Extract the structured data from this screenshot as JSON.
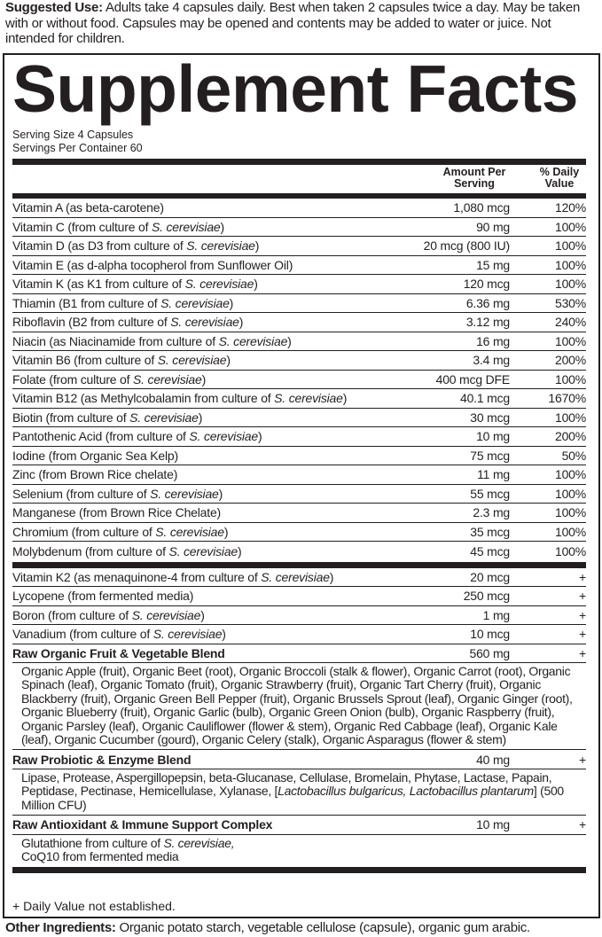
{
  "suggested_use": {
    "label": "Suggested Use:",
    "text": " Adults take 4 capsules daily. Best when taken 2 capsules twice a day. May be taken with or without food. Capsules may be opened and contents may be added to water or juice. Not intended for children."
  },
  "title": "Supplement Facts",
  "serving_size": "Serving Size 4 Capsules",
  "servings_per_container": "Servings Per Container 60",
  "header": {
    "amount": "Amount Per Serving",
    "dv": "% Daily Value"
  },
  "nutrients": [
    {
      "name": [
        "Vitamin A (as beta-carotene)"
      ],
      "amount": "1,080 mcg",
      "dv": "120%"
    },
    {
      "name": [
        "Vitamin C (from culture of ",
        "S. cerevisiae",
        ")"
      ],
      "amount": "90 mg",
      "dv": "100%"
    },
    {
      "name": [
        "Vitamin D (as D3 from culture of ",
        "S. cerevisiae",
        ")"
      ],
      "amount": "20 mcg (800 IU)",
      "dv": "100%"
    },
    {
      "name": [
        "Vitamin E (as d-alpha tocopherol from Sunflower Oil)"
      ],
      "amount": "15 mg",
      "dv": "100%"
    },
    {
      "name": [
        "Vitamin K (as K1 from culture of ",
        "S. cerevisiae",
        ")"
      ],
      "amount": "120 mcg",
      "dv": "100%"
    },
    {
      "name": [
        "Thiamin (B1 from culture of ",
        "S. cerevisiae",
        ")"
      ],
      "amount": "6.36 mg",
      "dv": "530%"
    },
    {
      "name": [
        "Riboflavin (B2 from culture of ",
        "S. cerevisiae",
        ")"
      ],
      "amount": "3.12 mg",
      "dv": "240%"
    },
    {
      "name": [
        "Niacin (as Niacinamide from culture of ",
        "S. cerevisiae",
        ")"
      ],
      "amount": "16 mg",
      "dv": "100%"
    },
    {
      "name": [
        "Vitamin B6 (from culture of ",
        "S. cerevisiae",
        ")"
      ],
      "amount": "3.4 mg",
      "dv": "200%"
    },
    {
      "name": [
        "Folate (from culture of ",
        "S. cerevisiae",
        ")"
      ],
      "amount": "400 mcg DFE",
      "dv": "100%"
    },
    {
      "name": [
        "Vitamin B12 (as Methylcobalamin from culture of ",
        "S. cerevisiae",
        ")"
      ],
      "amount": "40.1 mcg",
      "dv": "1670%"
    },
    {
      "name": [
        "Biotin (from culture of ",
        "S. cerevisiae",
        ")"
      ],
      "amount": "30 mcg",
      "dv": "100%"
    },
    {
      "name": [
        "Pantothenic Acid (from culture of ",
        "S. cerevisiae",
        ")"
      ],
      "amount": "10 mg",
      "dv": "200%"
    },
    {
      "name": [
        "Iodine (from Organic Sea Kelp)"
      ],
      "amount": "75 mcg",
      "dv": "50%"
    },
    {
      "name": [
        "Zinc (from Brown Rice chelate)"
      ],
      "amount": "11 mg",
      "dv": "100%"
    },
    {
      "name": [
        "Selenium (from culture of ",
        "S. cerevisiae",
        ")"
      ],
      "amount": "55 mcg",
      "dv": "100%"
    },
    {
      "name": [
        "Manganese (from Brown Rice Chelate)"
      ],
      "amount": "2.3 mg",
      "dv": "100%"
    },
    {
      "name": [
        "Chromium (from culture of ",
        "S. cerevisiae",
        ")"
      ],
      "amount": "35 mcg",
      "dv": "100%"
    },
    {
      "name": [
        "Molybdenum (from culture of ",
        "S. cerevisiae",
        ")"
      ],
      "amount": "45 mcg",
      "dv": "100%"
    }
  ],
  "other_nutrients": [
    {
      "name": [
        "Vitamin K2 (as menaquinone-4 from culture of ",
        "S. cerevisiae",
        ")"
      ],
      "amount": "20 mcg",
      "dv": "+"
    },
    {
      "name": [
        "Lycopene (from fermented media)"
      ],
      "amount": "250 mcg",
      "dv": "+"
    },
    {
      "name": [
        "Boron (from culture of ",
        "S. cerevisiae",
        ")"
      ],
      "amount": "1 mg",
      "dv": "+"
    },
    {
      "name": [
        "Vanadium (from culture of ",
        "S. cerevisiae",
        ")"
      ],
      "amount": "10 mcg",
      "dv": "+"
    }
  ],
  "blends": [
    {
      "name": "Raw Organic Fruit & Vegetable Blend",
      "amount": "560 mg",
      "dv": "+",
      "desc": [
        "Organic Apple (fruit), Organic Beet (root), Organic Broccoli (stalk & flower), Organic Carrot (root), Organic Spinach (leaf), Organic Tomato (fruit), Organic Strawberry (fruit), Organic Tart Cherry (fruit), Organic Blackberry (fruit), Organic Green Bell Pepper (fruit), Organic Brussels Sprout (leaf), Organic Ginger (root), Organic Blueberry (fruit), Organic Garlic (bulb), Organic Green Onion (bulb), Organic Raspberry (fruit), Organic Parsley (leaf), Organic Cauliflower (flower & stem), Organic Red Cabbage (leaf), Organic Kale (leaf), Organic Cucumber (gourd), Organic Celery (stalk), Organic Asparagus (flower & stem)"
      ]
    },
    {
      "name": "Raw Probiotic & Enzyme Blend",
      "amount": "40 mg",
      "dv": "+",
      "desc": [
        "Lipase, Protease, Aspergillopepsin, beta-Glucanase, Cellulase, Bromelain, Phytase, Lactase, Papain, Peptidase, Pectinase, Hemicellulase, Xylanase, [",
        "Lactobacillus bulgaricus, Lactobacillus plantarum",
        "] (500 Million CFU)"
      ]
    },
    {
      "name": "Raw Antioxidant & Immune Support Complex",
      "amount": "10 mg",
      "dv": "+",
      "desc": [
        "Glutathione from culture of ",
        "S. cerevisiae,",
        "\nCoQ10 from fermented media"
      ]
    }
  ],
  "footnote": "+ Daily Value not established.",
  "other_ingredients": {
    "label": "Other Ingredients:",
    "text": " Organic potato starch, vegetable cellulose (capsule), organic gum arabic."
  }
}
